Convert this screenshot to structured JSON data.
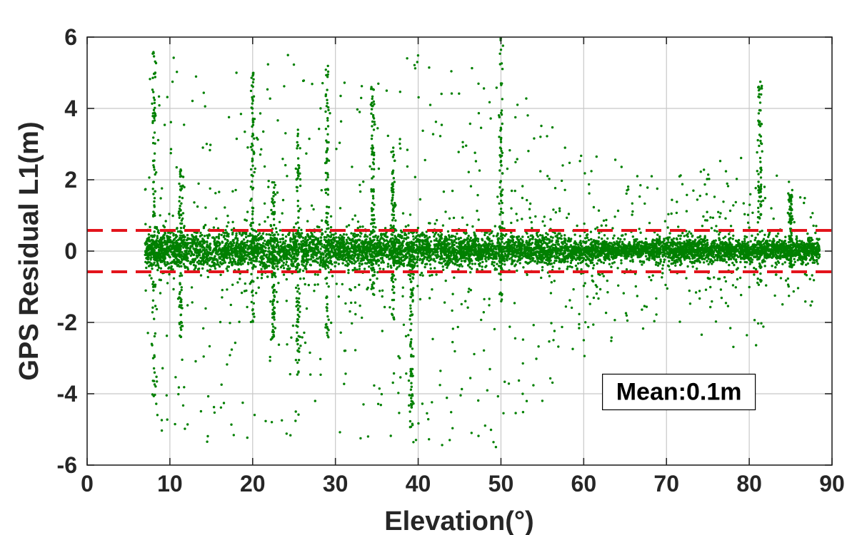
{
  "chart_data": {
    "type": "scatter",
    "xlabel": "Elevation(°)",
    "ylabel": "GPS Residual L1(m)",
    "xlim": [
      0,
      90
    ],
    "ylim": [
      -6,
      6
    ],
    "x_ticks": [
      0,
      10,
      20,
      30,
      40,
      50,
      60,
      70,
      80,
      90
    ],
    "y_ticks": [
      -6,
      -4,
      -2,
      0,
      2,
      4,
      6
    ],
    "grid": true,
    "series": [
      {
        "marker": "dot",
        "color": "#008000",
        "x_range": [
          7,
          88.5
        ],
        "core_band_by_elevation": [
          [
            7,
            0.45
          ],
          [
            20,
            0.5
          ],
          [
            30,
            0.45
          ],
          [
            40,
            0.4
          ],
          [
            50,
            0.35
          ],
          [
            60,
            0.3
          ],
          [
            65,
            0.2
          ],
          [
            70,
            0.3
          ],
          [
            80,
            0.25
          ],
          [
            88.5,
            0.25
          ]
        ],
        "outlier_envelope_by_elevation": [
          [
            8,
            5.5
          ],
          [
            20,
            5.5
          ],
          [
            30,
            5.5
          ],
          [
            40,
            5.5
          ],
          [
            50,
            5.5
          ],
          [
            60,
            3.0
          ],
          [
            70,
            2.0
          ],
          [
            80,
            3.0
          ],
          [
            88.5,
            1.5
          ]
        ],
        "vertical_streaks": [
          {
            "x": 8.1,
            "ymin": -4.2,
            "ymax": 5.6
          },
          {
            "x": 11.3,
            "ymin": -2.5,
            "ymax": 2.3
          },
          {
            "x": 20.0,
            "ymin": -2.0,
            "ymax": 5.0
          },
          {
            "x": 22.5,
            "ymin": -2.5,
            "ymax": 2.0
          },
          {
            "x": 25.5,
            "ymin": -3.5,
            "ymax": 3.5
          },
          {
            "x": 29.0,
            "ymin": -2.5,
            "ymax": 5.5
          },
          {
            "x": 34.5,
            "ymin": -1.5,
            "ymax": 4.6
          },
          {
            "x": 37.0,
            "ymin": -2.0,
            "ymax": 2.9
          },
          {
            "x": 39.2,
            "ymin": -5.0,
            "ymax": 0.0
          },
          {
            "x": 50.0,
            "ymin": -1.5,
            "ymax": 6.0
          },
          {
            "x": 81.3,
            "ymin": -1.0,
            "ymax": 4.8
          },
          {
            "x": 85.0,
            "ymin": -0.5,
            "ymax": 1.7
          }
        ]
      }
    ],
    "reference_lines": [
      {
        "y": 0.58,
        "color": "#e3141c",
        "style": "dashed"
      },
      {
        "y": -0.58,
        "color": "#e3141c",
        "style": "dashed"
      }
    ],
    "annotation": {
      "text": "Mean:0.1m",
      "x": 71.5,
      "y": -3.95
    }
  }
}
